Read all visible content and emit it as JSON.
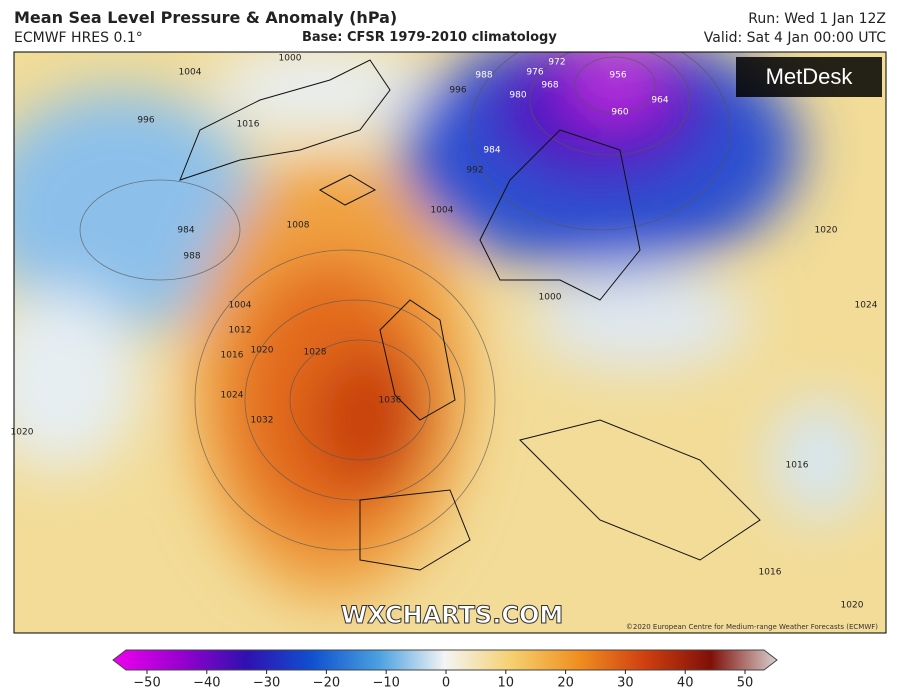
{
  "header": {
    "title": "Mean Sea Level Pressure & Anomaly (hPa)",
    "model": "ECMWF HRES 0.1°",
    "base": "Base: CFSR 1979-2010 climatology",
    "run": "Run: Wed 1 Jan 12Z",
    "valid": "Valid: Sat 4 Jan 00:00 UTC"
  },
  "map": {
    "logo": "MetDesk",
    "watermark": "WXCHARTS.COM",
    "copyright": "©2020 European Centre for Medium-range Weather Forecasts (ECMWF)",
    "contour_labels": [
      1000,
      1004,
      996,
      984,
      988,
      1016,
      1008,
      1004,
      1012,
      1016,
      1020,
      1024,
      1028,
      1032,
      1036,
      1020,
      1004,
      988,
      996,
      992,
      984,
      980,
      976,
      972,
      968,
      956,
      960,
      964,
      1000,
      1020,
      1024,
      1016,
      1016,
      1020
    ]
  },
  "colorbar": {
    "lim": [
      -50,
      50
    ],
    "ticks": [
      {
        "value": -50,
        "label": "−50"
      },
      {
        "value": -40,
        "label": "−40"
      },
      {
        "value": -30,
        "label": "−30"
      },
      {
        "value": -20,
        "label": "−20"
      },
      {
        "value": -10,
        "label": "−10"
      },
      0,
      10,
      20,
      30,
      40,
      50
    ]
  }
}
